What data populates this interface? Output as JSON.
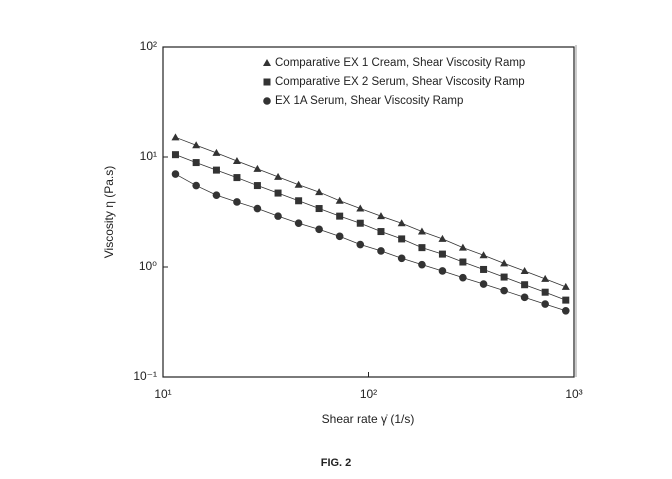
{
  "chart_data": {
    "type": "line",
    "log_x": true,
    "log_y": true,
    "xlabel": "Shear rate γ̇ (1/s)",
    "ylabel": "Viscosity η (Pa.s)",
    "caption": "FIG. 2",
    "xlim": [
      10,
      1000
    ],
    "ylim": [
      0.1,
      100
    ],
    "xticks": [
      {
        "value": 10,
        "label": "10¹"
      },
      {
        "value": 100,
        "label": "10²"
      },
      {
        "value": 1000,
        "label": "10³"
      }
    ],
    "yticks": [
      {
        "value": 0.1,
        "label": "10⁻¹"
      },
      {
        "value": 1,
        "label": "10⁰"
      },
      {
        "value": 10,
        "label": "10¹"
      },
      {
        "value": 100,
        "label": "10²"
      }
    ],
    "legend": "upper left",
    "x": [
      11.5,
      14.5,
      18.2,
      22.9,
      28.8,
      36.3,
      45.7,
      57.5,
      72.4,
      91.2,
      115,
      145,
      182,
      229,
      288,
      363,
      457,
      575,
      724,
      912
    ],
    "series": [
      {
        "name": "Comparative EX 1 Cream, Shear Viscosity Ramp",
        "color": "#333333",
        "marker": "triangle",
        "values": [
          15.1,
          12.8,
          10.9,
          9.2,
          7.8,
          6.6,
          5.6,
          4.8,
          4.0,
          3.4,
          2.9,
          2.5,
          2.1,
          1.8,
          1.5,
          1.28,
          1.08,
          0.92,
          0.78,
          0.66
        ]
      },
      {
        "name": "Comparative EX 2 Serum, Shear Viscosity Ramp",
        "color": "#333333",
        "marker": "square",
        "values": [
          10.5,
          8.9,
          7.6,
          6.5,
          5.5,
          4.7,
          4.0,
          3.4,
          2.9,
          2.5,
          2.1,
          1.8,
          1.5,
          1.31,
          1.11,
          0.95,
          0.81,
          0.69,
          0.59,
          0.5
        ]
      },
      {
        "name": "EX 1A Serum, Shear Viscosity Ramp",
        "color": "#333333",
        "marker": "circle",
        "values": [
          7.0,
          5.5,
          4.5,
          3.9,
          3.4,
          2.9,
          2.5,
          2.2,
          1.9,
          1.6,
          1.4,
          1.2,
          1.05,
          0.92,
          0.8,
          0.7,
          0.61,
          0.53,
          0.46,
          0.4
        ]
      }
    ]
  }
}
